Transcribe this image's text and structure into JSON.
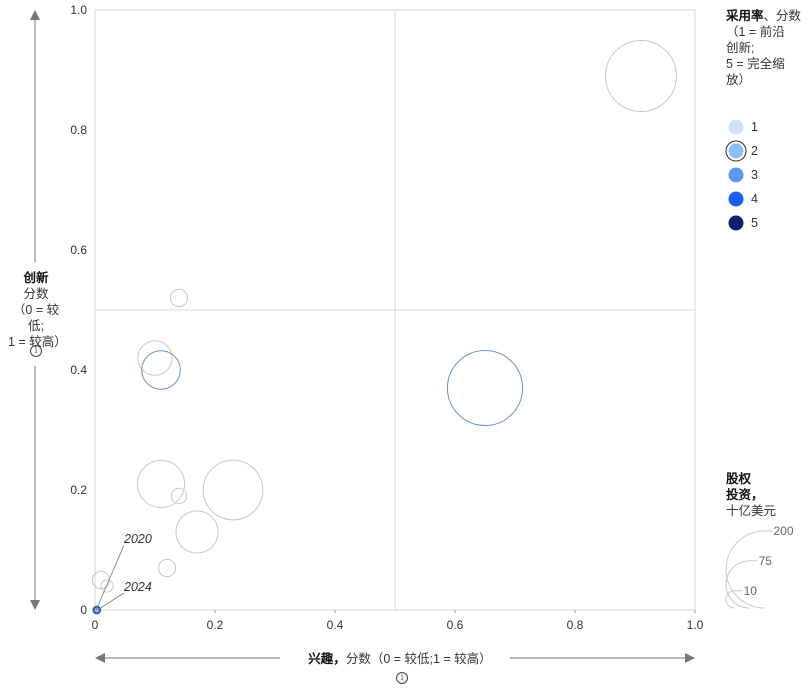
{
  "chart_data": {
    "type": "scatter",
    "title": "",
    "xlabel_bold": "兴趣，",
    "xlabel": "分数（0 = 较低;1 = 较高）",
    "ylabel_bold": "创新",
    "ylabel_l1": "分数",
    "ylabel_l2": "（0 = 较低;",
    "ylabel_l3": "1 = 较高）",
    "xlim": [
      0,
      1
    ],
    "ylim": [
      0,
      1
    ],
    "x_ticks": [
      "0",
      "0.2",
      "0.4",
      "0.6",
      "0.8",
      "1.0"
    ],
    "y_ticks": [
      "0",
      "0.2",
      "0.4",
      "0.6",
      "0.8",
      "1.0"
    ],
    "quadrant_lines": [
      0.5,
      0.5
    ],
    "points": [
      {
        "x": 0.91,
        "y": 0.89,
        "size": 170,
        "adoption": 1
      },
      {
        "x": 0.65,
        "y": 0.37,
        "size": 190,
        "adoption": 2
      },
      {
        "x": 0.14,
        "y": 0.52,
        "size": 10,
        "adoption": 1
      },
      {
        "x": 0.1,
        "y": 0.42,
        "size": 40,
        "adoption": 1
      },
      {
        "x": 0.11,
        "y": 0.4,
        "size": 50,
        "adoption": 2
      },
      {
        "x": 0.11,
        "y": 0.21,
        "size": 75,
        "adoption": 1
      },
      {
        "x": 0.23,
        "y": 0.2,
        "size": 120,
        "adoption": 1
      },
      {
        "x": 0.14,
        "y": 0.19,
        "size": 8,
        "adoption": 1
      },
      {
        "x": 0.17,
        "y": 0.13,
        "size": 60,
        "adoption": 1
      },
      {
        "x": 0.12,
        "y": 0.07,
        "size": 10,
        "adoption": 1
      },
      {
        "x": 0.01,
        "y": 0.05,
        "size": 10,
        "adoption": 1
      },
      {
        "x": 0.02,
        "y": 0.04,
        "size": 5,
        "adoption": 1
      },
      {
        "x": 0.003,
        "y": 0.0,
        "size": 2,
        "adoption": 3
      },
      {
        "x": 0.003,
        "y": 0.0,
        "size": 1,
        "adoption": 2
      }
    ],
    "annotations": [
      {
        "text": "2020",
        "x": 0.002,
        "y": 0.0,
        "label_x": 0.05,
        "label_y": 0.11
      },
      {
        "text": "2024",
        "x": 0.004,
        "y": 0.0,
        "label_x": 0.05,
        "label_y": 0.03
      }
    ],
    "adoption_legend": {
      "title_bold": "采用率",
      "title_rest": "、分数",
      "title_l2": "（1 = 前沿",
      "title_l3": "创新;",
      "title_l4": "5 = 完全缩",
      "title_l5": "放）",
      "entries": [
        {
          "label": "1",
          "color": "#cfe0f8"
        },
        {
          "label": "2",
          "color": "#93bdf2"
        },
        {
          "label": "3",
          "color": "#5a9bf0"
        },
        {
          "label": "4",
          "color": "#1c5ff0"
        },
        {
          "label": "5",
          "color": "#0b1f6b"
        }
      ]
    },
    "size_legend": {
      "title_l1": "股权",
      "title_l2": "投资，",
      "title_l3": "十亿美元",
      "values": [
        200,
        75,
        10
      ]
    },
    "colors": {
      "bubble_outline_default": "#c7c7c7",
      "bubble_outline_adoption2": "#6b93c9",
      "grid": "#d9d9d9",
      "axis_arrow": "#777777"
    }
  }
}
